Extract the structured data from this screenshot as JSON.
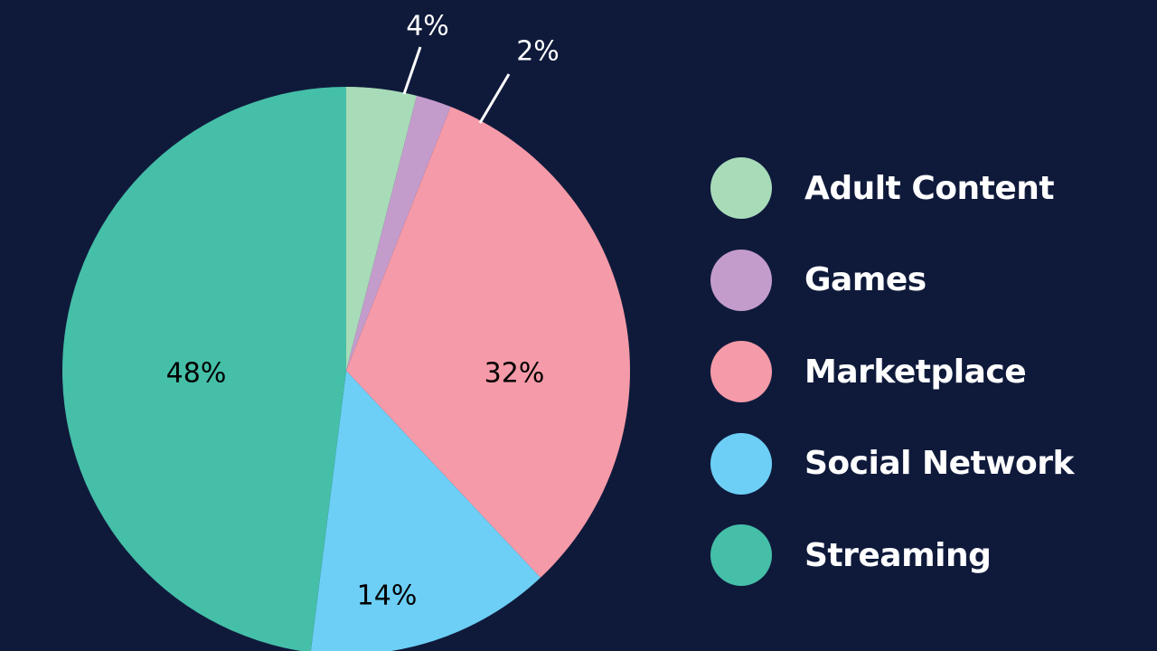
{
  "chart_data": {
    "type": "pie",
    "categories": [
      "Adult Content",
      "Games",
      "Marketplace",
      "Social Network",
      "Streaming"
    ],
    "values": [
      4,
      2,
      32,
      14,
      48
    ],
    "labels": [
      "4%",
      "2%",
      "32%",
      "14%",
      "48%"
    ],
    "colors": [
      "#a8dbb8",
      "#c49ccc",
      "#f59aa8",
      "#6dcff6",
      "#45bfa8"
    ],
    "legend_position": "right",
    "start_angle_deg": 0,
    "direction": "clockwise"
  },
  "colors": {
    "background": "#0f1a3b",
    "legend_text": "#ffffff",
    "outside_label": "#ffffff",
    "inside_label": "#000000"
  },
  "legend": {
    "items": [
      {
        "label": "Adult Content",
        "color": "#a8dbb8"
      },
      {
        "label": "Games",
        "color": "#c49ccc"
      },
      {
        "label": "Marketplace",
        "color": "#f59aa8"
      },
      {
        "label": "Social Network",
        "color": "#6dcff6"
      },
      {
        "label": "Streaming",
        "color": "#45bfa8"
      }
    ]
  }
}
